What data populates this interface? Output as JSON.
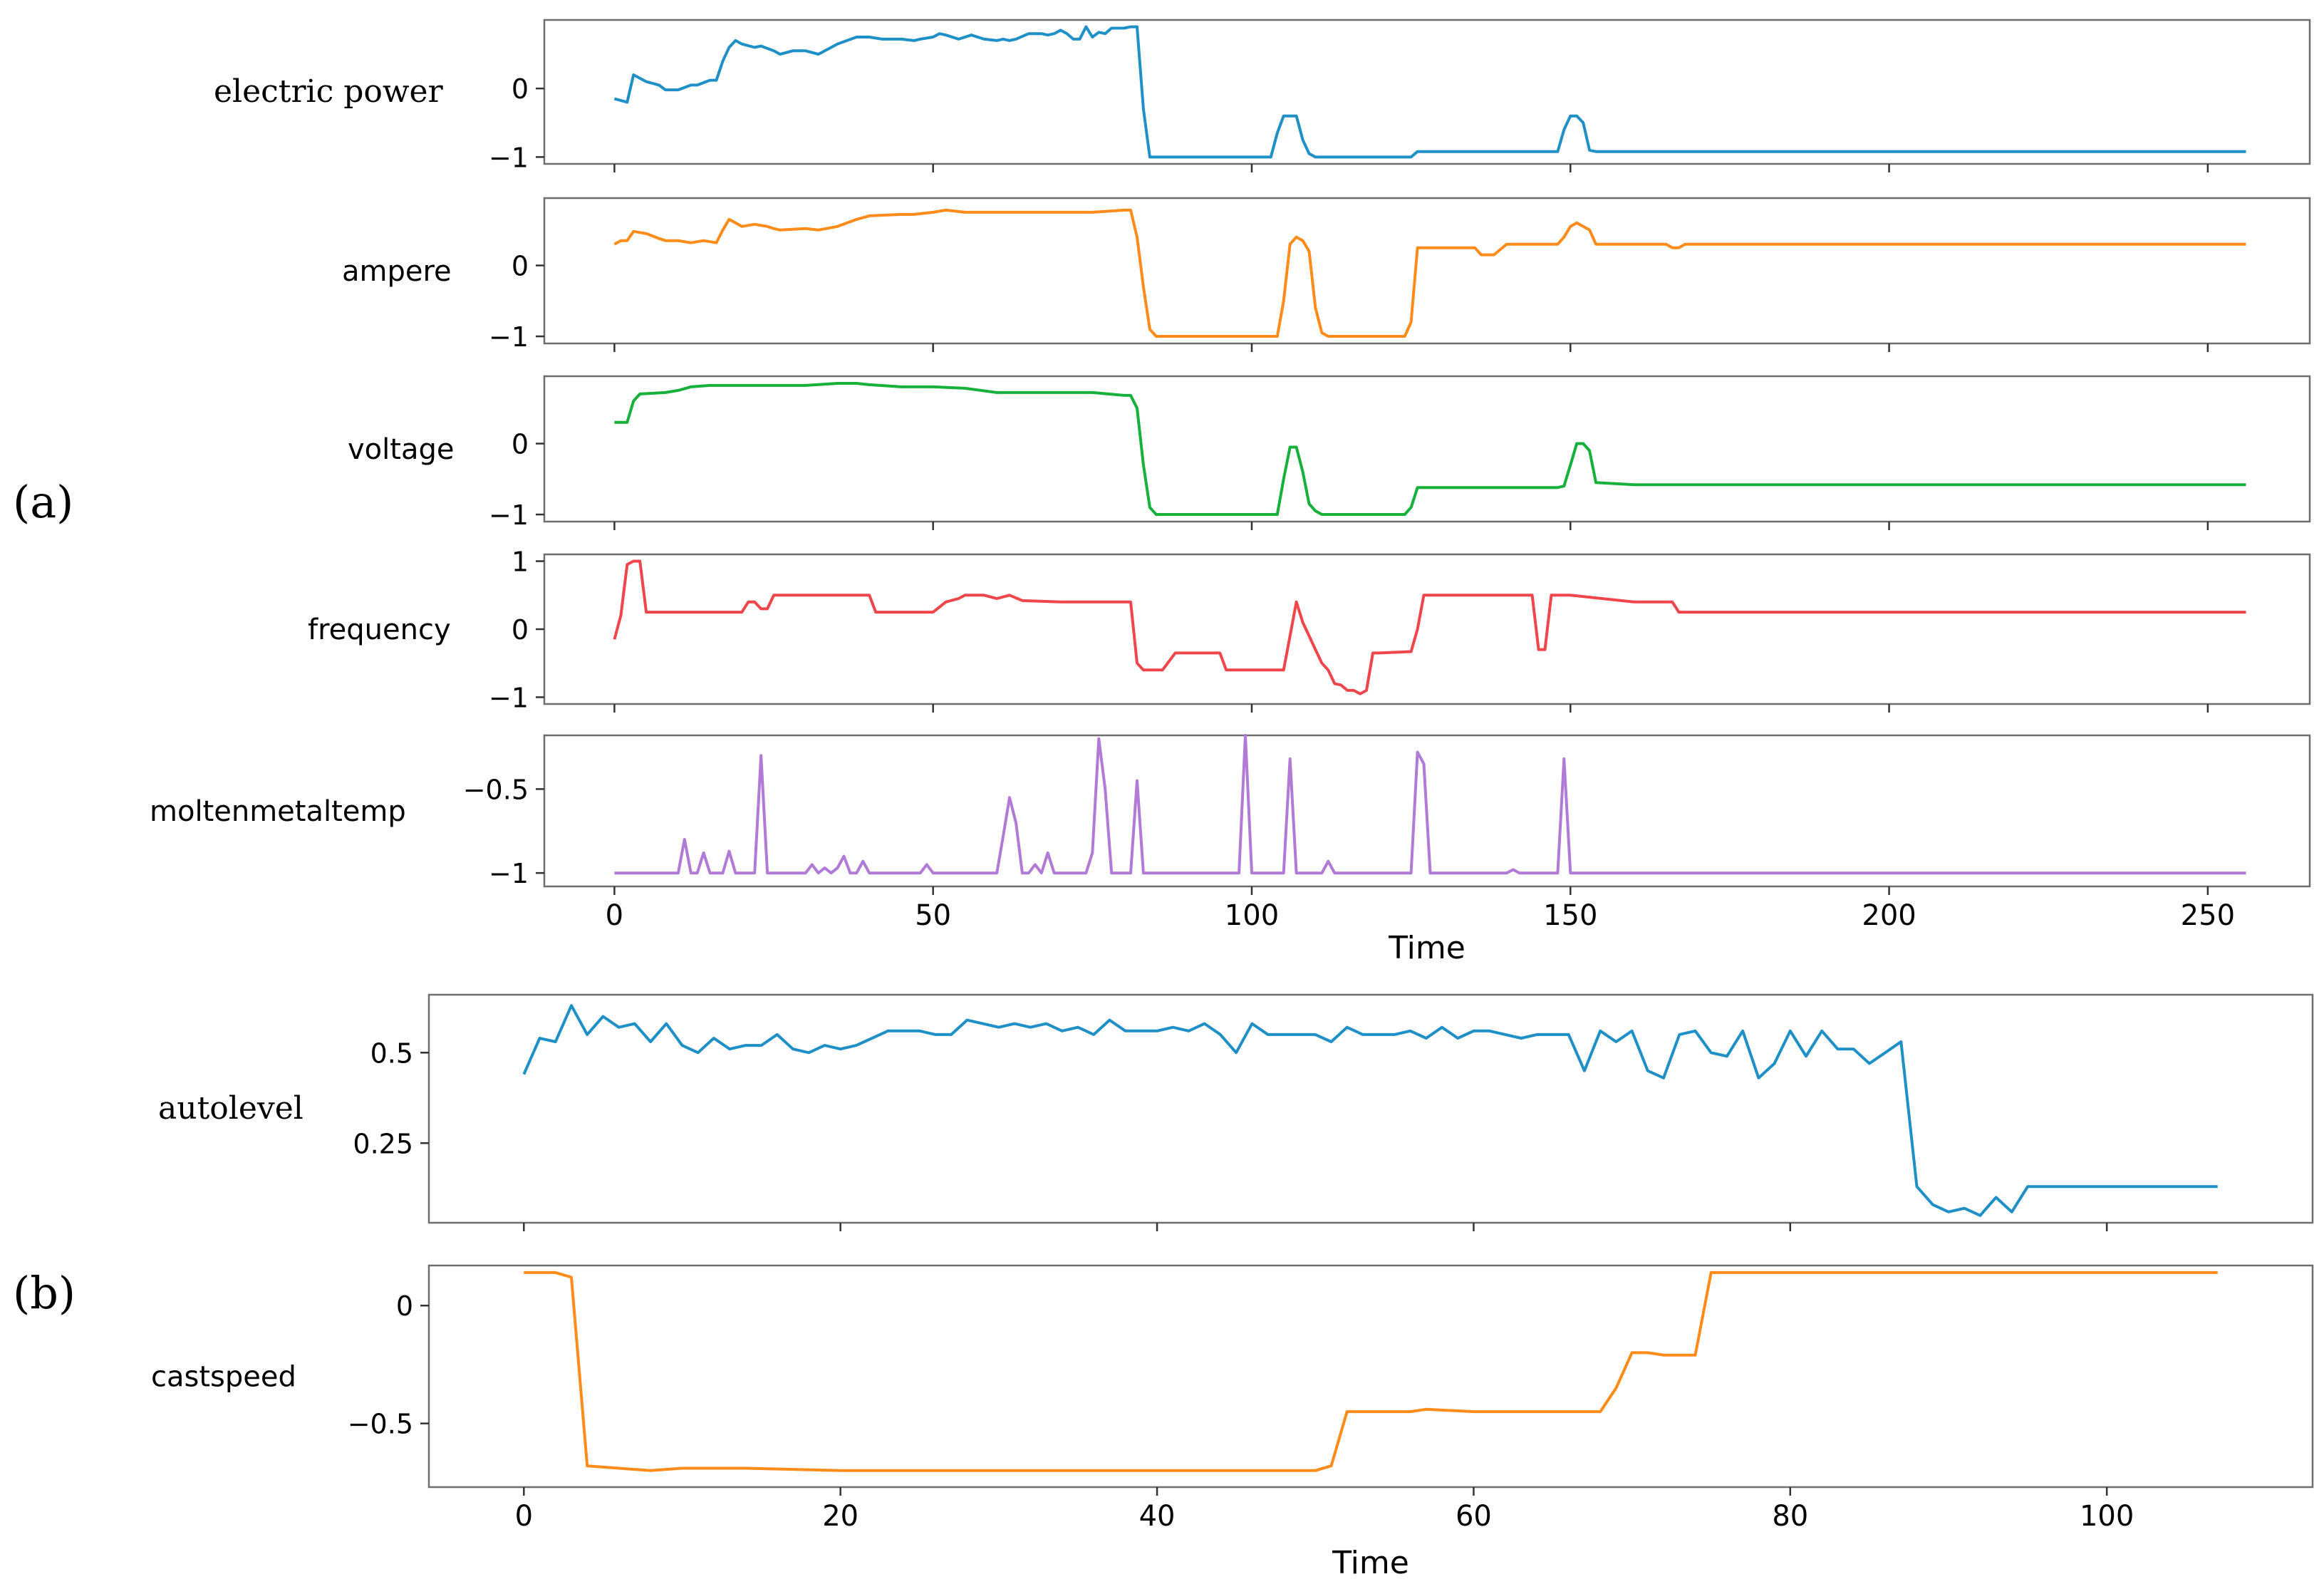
{
  "panel_labels": {
    "a": "(a)",
    "b": "(b)"
  },
  "colors": {
    "blue": "#1f8fc8",
    "orange": "#ff8c1a",
    "green": "#16b03a",
    "red": "#f0454a",
    "purple": "#b07ad6"
  },
  "chart_data": [
    {
      "type": "line",
      "panel": "a",
      "xlabel": "Time",
      "xlim": [
        -11,
        266
      ],
      "xticks": [
        0,
        50,
        100,
        150,
        200,
        250
      ],
      "subplots": [
        {
          "name": "electric power",
          "color": "blue",
          "ylim": [
            -1.1,
            1.0
          ],
          "yticks": [
            0,
            -1
          ],
          "x": [
            0,
            2,
            3,
            5,
            7,
            8,
            10,
            12,
            13,
            15,
            16,
            17,
            18,
            19,
            20,
            22,
            23,
            25,
            26,
            28,
            30,
            32,
            35,
            38,
            40,
            42,
            45,
            47,
            48,
            50,
            51,
            52,
            54,
            56,
            58,
            60,
            61,
            62,
            63,
            65,
            67,
            68,
            69,
            70,
            71,
            72,
            73,
            74,
            75,
            76,
            77,
            78,
            80,
            81,
            82,
            83,
            84,
            85,
            90,
            95,
            100,
            103,
            104,
            105,
            106,
            107,
            108,
            109,
            110,
            115,
            120,
            125,
            126,
            130,
            140,
            148,
            149,
            150,
            151,
            152,
            153,
            154,
            160,
            200,
            256
          ],
          "values": [
            -0.15,
            -0.2,
            0.2,
            0.1,
            0.05,
            -0.02,
            -0.02,
            0.05,
            0.05,
            0.12,
            0.12,
            0.4,
            0.6,
            0.7,
            0.65,
            0.6,
            0.62,
            0.55,
            0.5,
            0.55,
            0.55,
            0.5,
            0.65,
            0.75,
            0.75,
            0.72,
            0.72,
            0.7,
            0.72,
            0.75,
            0.8,
            0.78,
            0.72,
            0.78,
            0.72,
            0.7,
            0.72,
            0.7,
            0.72,
            0.8,
            0.8,
            0.78,
            0.8,
            0.85,
            0.8,
            0.72,
            0.72,
            0.9,
            0.75,
            0.82,
            0.8,
            0.88,
            0.88,
            0.9,
            0.9,
            -0.3,
            -1.0,
            -1.0,
            -1.0,
            -1.0,
            -1.0,
            -1.0,
            -0.65,
            -0.4,
            -0.4,
            -0.4,
            -0.75,
            -0.95,
            -1.0,
            -1.0,
            -1.0,
            -1.0,
            -0.92,
            -0.92,
            -0.92,
            -0.92,
            -0.6,
            -0.4,
            -0.4,
            -0.5,
            -0.9,
            -0.92,
            -0.92,
            -0.92,
            -0.92
          ]
        },
        {
          "name": "ampere",
          "color": "orange",
          "ylim": [
            -1.1,
            0.95
          ],
          "yticks": [
            0,
            -1
          ],
          "x": [
            0,
            1,
            2,
            3,
            5,
            7,
            8,
            10,
            12,
            14,
            16,
            17,
            18,
            19,
            20,
            22,
            24,
            25,
            26,
            30,
            32,
            35,
            38,
            40,
            45,
            47,
            50,
            52,
            55,
            60,
            70,
            75,
            80,
            81,
            82,
            83,
            84,
            85,
            90,
            100,
            104,
            105,
            106,
            107,
            108,
            109,
            110,
            111,
            112,
            115,
            120,
            124,
            125,
            126,
            130,
            135,
            136,
            138,
            140,
            145,
            148,
            149,
            150,
            151,
            152,
            153,
            154,
            160,
            165,
            166,
            167,
            168,
            180,
            200,
            256
          ],
          "values": [
            0.3,
            0.35,
            0.35,
            0.48,
            0.45,
            0.38,
            0.35,
            0.35,
            0.32,
            0.35,
            0.32,
            0.5,
            0.65,
            0.6,
            0.55,
            0.58,
            0.55,
            0.52,
            0.5,
            0.52,
            0.5,
            0.55,
            0.65,
            0.7,
            0.72,
            0.72,
            0.75,
            0.78,
            0.75,
            0.75,
            0.75,
            0.75,
            0.78,
            0.78,
            0.4,
            -0.3,
            -0.9,
            -1.0,
            -1.0,
            -1.0,
            -1.0,
            -0.5,
            0.3,
            0.4,
            0.35,
            0.2,
            -0.6,
            -0.95,
            -1.0,
            -1.0,
            -1.0,
            -1.0,
            -0.8,
            0.25,
            0.25,
            0.25,
            0.15,
            0.15,
            0.3,
            0.3,
            0.3,
            0.4,
            0.55,
            0.6,
            0.55,
            0.5,
            0.3,
            0.3,
            0.3,
            0.25,
            0.25,
            0.3,
            0.3,
            0.3,
            0.3
          ]
        },
        {
          "name": "voltage",
          "color": "green",
          "ylim": [
            -1.1,
            0.95
          ],
          "yticks": [
            0,
            -1
          ],
          "x": [
            0,
            2,
            3,
            4,
            8,
            10,
            12,
            15,
            20,
            30,
            35,
            38,
            40,
            45,
            50,
            55,
            60,
            70,
            75,
            80,
            81,
            82,
            83,
            84,
            85,
            90,
            100,
            104,
            105,
            106,
            107,
            108,
            109,
            110,
            111,
            112,
            115,
            120,
            124,
            125,
            126,
            130,
            140,
            148,
            149,
            150,
            151,
            152,
            153,
            154,
            160,
            200,
            256
          ],
          "values": [
            0.3,
            0.3,
            0.6,
            0.7,
            0.72,
            0.75,
            0.8,
            0.82,
            0.82,
            0.82,
            0.85,
            0.85,
            0.83,
            0.8,
            0.8,
            0.78,
            0.72,
            0.72,
            0.72,
            0.68,
            0.68,
            0.5,
            -0.3,
            -0.9,
            -1.0,
            -1.0,
            -1.0,
            -1.0,
            -0.5,
            -0.05,
            -0.05,
            -0.4,
            -0.85,
            -0.95,
            -1.0,
            -1.0,
            -1.0,
            -1.0,
            -1.0,
            -0.9,
            -0.62,
            -0.62,
            -0.62,
            -0.62,
            -0.6,
            -0.3,
            0.0,
            0.0,
            -0.1,
            -0.55,
            -0.58,
            -0.58,
            -0.58
          ]
        },
        {
          "name": "frequency",
          "color": "red",
          "ylim": [
            -1.1,
            1.1
          ],
          "yticks": [
            1,
            0,
            -1
          ],
          "x": [
            0,
            1,
            2,
            3,
            4,
            5,
            20,
            21,
            22,
            23,
            24,
            25,
            26,
            40,
            41,
            50,
            52,
            54,
            55,
            58,
            60,
            62,
            64,
            70,
            80,
            81,
            82,
            83,
            84,
            85,
            86,
            88,
            90,
            95,
            96,
            100,
            104,
            105,
            106,
            107,
            108,
            109,
            110,
            111,
            112,
            113,
            114,
            115,
            116,
            117,
            118,
            119,
            120,
            125,
            126,
            127,
            140,
            144,
            145,
            146,
            147,
            148,
            149,
            150,
            160,
            165,
            166,
            167,
            168,
            200,
            256
          ],
          "values": [
            -0.15,
            0.2,
            0.95,
            1.0,
            1.0,
            0.25,
            0.25,
            0.4,
            0.4,
            0.3,
            0.3,
            0.5,
            0.5,
            0.5,
            0.25,
            0.25,
            0.4,
            0.45,
            0.5,
            0.5,
            0.45,
            0.5,
            0.42,
            0.4,
            0.4,
            0.4,
            -0.5,
            -0.6,
            -0.6,
            -0.6,
            -0.6,
            -0.35,
            -0.35,
            -0.35,
            -0.6,
            -0.6,
            -0.6,
            -0.6,
            -0.1,
            0.4,
            0.1,
            -0.1,
            -0.3,
            -0.5,
            -0.6,
            -0.8,
            -0.82,
            -0.9,
            -0.9,
            -0.95,
            -0.9,
            -0.35,
            -0.35,
            -0.33,
            0.0,
            0.5,
            0.5,
            0.5,
            -0.3,
            -0.3,
            0.5,
            0.5,
            0.5,
            0.5,
            0.4,
            0.4,
            0.4,
            0.25,
            0.25,
            0.25,
            0.25
          ]
        },
        {
          "name": "moltenmetaltemp",
          "color": "purple",
          "ylim": [
            -1.08,
            -0.18
          ],
          "yticks": [
            -0.5,
            -1.0
          ],
          "x": [
            0,
            10,
            11,
            12,
            13,
            14,
            15,
            17,
            18,
            19,
            22,
            23,
            24,
            30,
            31,
            32,
            33,
            34,
            35,
            36,
            37,
            38,
            39,
            40,
            41,
            48,
            49,
            50,
            51,
            52,
            60,
            61,
            62,
            63,
            64,
            65,
            66,
            67,
            68,
            69,
            70,
            74,
            75,
            76,
            77,
            78,
            81,
            82,
            83,
            98,
            99,
            100,
            105,
            106,
            107,
            111,
            112,
            113,
            125,
            126,
            127,
            128,
            140,
            141,
            142,
            148,
            149,
            150,
            256
          ],
          "values": [
            -1.0,
            -1.0,
            -0.8,
            -1.0,
            -1.0,
            -0.88,
            -1.0,
            -1.0,
            -0.87,
            -1.0,
            -1.0,
            -0.3,
            -1.0,
            -1.0,
            -0.95,
            -1.0,
            -0.97,
            -1.0,
            -0.97,
            -0.9,
            -1.0,
            -1.0,
            -0.93,
            -1.0,
            -1.0,
            -1.0,
            -0.95,
            -1.0,
            -1.0,
            -1.0,
            -1.0,
            -0.78,
            -0.55,
            -0.7,
            -1.0,
            -1.0,
            -0.95,
            -1.0,
            -0.88,
            -1.0,
            -1.0,
            -1.0,
            -0.88,
            -0.2,
            -0.5,
            -1.0,
            -1.0,
            -0.45,
            -1.0,
            -1.0,
            -0.18,
            -1.0,
            -1.0,
            -0.32,
            -1.0,
            -1.0,
            -0.93,
            -1.0,
            -1.0,
            -0.28,
            -0.35,
            -1.0,
            -1.0,
            -0.98,
            -1.0,
            -1.0,
            -0.32,
            -1.0,
            -1.0
          ]
        }
      ]
    },
    {
      "type": "line",
      "panel": "b",
      "xlabel": "Time",
      "xlim": [
        -6,
        113
      ],
      "xticks": [
        0,
        20,
        40,
        60,
        80,
        100
      ],
      "subplots": [
        {
          "name": "autolevel",
          "color": "blue",
          "ylim": [
            0.03,
            0.66
          ],
          "yticks": [
            0.5,
            0.25
          ],
          "x": [
            0,
            1,
            2,
            3,
            4,
            5,
            6,
            7,
            8,
            9,
            10,
            11,
            12,
            13,
            14,
            15,
            16,
            17,
            18,
            19,
            20,
            21,
            22,
            23,
            24,
            25,
            26,
            27,
            28,
            29,
            30,
            31,
            32,
            33,
            34,
            35,
            36,
            37,
            38,
            39,
            40,
            41,
            42,
            43,
            44,
            45,
            46,
            47,
            48,
            49,
            50,
            51,
            52,
            53,
            54,
            55,
            56,
            57,
            58,
            59,
            60,
            61,
            62,
            63,
            64,
            65,
            66,
            67,
            68,
            69,
            70,
            71,
            72,
            73,
            74,
            75,
            76,
            77,
            78,
            79,
            80,
            81,
            82,
            83,
            84,
            85,
            86,
            87,
            88,
            89,
            90,
            91,
            92,
            93,
            94,
            95,
            96,
            100,
            107
          ],
          "values": [
            0.44,
            0.54,
            0.53,
            0.63,
            0.55,
            0.6,
            0.57,
            0.58,
            0.53,
            0.58,
            0.52,
            0.5,
            0.54,
            0.51,
            0.52,
            0.52,
            0.55,
            0.51,
            0.5,
            0.52,
            0.51,
            0.52,
            0.54,
            0.56,
            0.56,
            0.56,
            0.55,
            0.55,
            0.59,
            0.58,
            0.57,
            0.58,
            0.57,
            0.58,
            0.56,
            0.57,
            0.55,
            0.59,
            0.56,
            0.56,
            0.56,
            0.57,
            0.56,
            0.58,
            0.55,
            0.5,
            0.58,
            0.55,
            0.55,
            0.55,
            0.55,
            0.53,
            0.57,
            0.55,
            0.55,
            0.55,
            0.56,
            0.54,
            0.57,
            0.54,
            0.56,
            0.56,
            0.55,
            0.54,
            0.55,
            0.55,
            0.55,
            0.45,
            0.56,
            0.53,
            0.56,
            0.45,
            0.43,
            0.55,
            0.56,
            0.5,
            0.49,
            0.56,
            0.43,
            0.47,
            0.56,
            0.49,
            0.56,
            0.51,
            0.51,
            0.47,
            0.5,
            0.53,
            0.13,
            0.08,
            0.06,
            0.07,
            0.05,
            0.1,
            0.06,
            0.13,
            0.13,
            0.13,
            0.13
          ]
        },
        {
          "name": "castspeed",
          "color": "orange",
          "ylim": [
            -0.77,
            0.17
          ],
          "yticks": [
            0.0,
            -0.5
          ],
          "x": [
            0,
            1,
            2,
            3,
            4,
            6,
            8,
            10,
            14,
            20,
            30,
            40,
            45,
            50,
            51,
            52,
            54,
            56,
            57,
            60,
            65,
            68,
            69,
            70,
            71,
            72,
            73,
            74,
            75,
            76,
            80,
            90,
            100,
            107
          ],
          "values": [
            0.14,
            0.14,
            0.14,
            0.12,
            -0.68,
            -0.69,
            -0.7,
            -0.69,
            -0.69,
            -0.7,
            -0.7,
            -0.7,
            -0.7,
            -0.7,
            -0.68,
            -0.45,
            -0.45,
            -0.45,
            -0.44,
            -0.45,
            -0.45,
            -0.45,
            -0.35,
            -0.2,
            -0.2,
            -0.21,
            -0.21,
            -0.21,
            0.14,
            0.14,
            0.14,
            0.14,
            0.14,
            0.14
          ]
        }
      ]
    }
  ]
}
